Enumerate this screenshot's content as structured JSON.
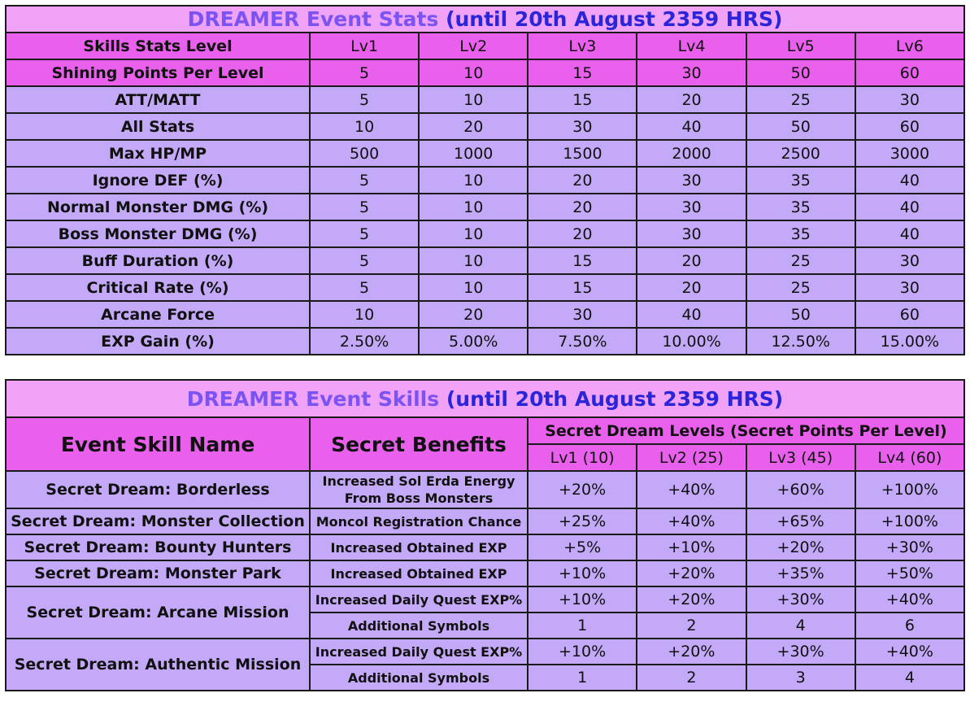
{
  "stats": {
    "title": "DREAMER Event Stats",
    "title_date": "(until 20th August 2359 HRS)",
    "header_label": "Skills Stats Level",
    "levels": [
      "Lv1",
      "Lv2",
      "Lv3",
      "Lv4",
      "Lv5",
      "Lv6"
    ],
    "points_row": {
      "label": "Shining Points Per Level",
      "values": [
        "5",
        "10",
        "15",
        "30",
        "50",
        "60"
      ]
    },
    "rows": [
      {
        "label": "ATT/MATT",
        "values": [
          "5",
          "10",
          "15",
          "20",
          "25",
          "30"
        ]
      },
      {
        "label": "All Stats",
        "values": [
          "10",
          "20",
          "30",
          "40",
          "50",
          "60"
        ]
      },
      {
        "label": "Max HP/MP",
        "values": [
          "500",
          "1000",
          "1500",
          "2000",
          "2500",
          "3000"
        ]
      },
      {
        "label": "Ignore DEF (%)",
        "values": [
          "5",
          "10",
          "20",
          "30",
          "35",
          "40"
        ]
      },
      {
        "label": "Normal Monster DMG (%)",
        "values": [
          "5",
          "10",
          "20",
          "30",
          "35",
          "40"
        ]
      },
      {
        "label": "Boss Monster DMG (%)",
        "values": [
          "5",
          "10",
          "20",
          "30",
          "35",
          "40"
        ]
      },
      {
        "label": "Buff Duration (%)",
        "values": [
          "5",
          "10",
          "15",
          "20",
          "25",
          "30"
        ]
      },
      {
        "label": "Critical Rate (%)",
        "values": [
          "5",
          "10",
          "15",
          "20",
          "25",
          "30"
        ]
      },
      {
        "label": "Arcane Force",
        "values": [
          "10",
          "20",
          "30",
          "40",
          "50",
          "60"
        ]
      },
      {
        "label": "EXP Gain (%)",
        "values": [
          "2.50%",
          "5.00%",
          "7.50%",
          "10.00%",
          "12.50%",
          "15.00%"
        ]
      }
    ]
  },
  "skills": {
    "title": "DREAMER Event Skills",
    "title_date": "(until 20th August 2359 HRS)",
    "col_name": "Event Skill Name",
    "col_benefits": "Secret Benefits",
    "col_levels_group": "Secret Dream Levels (Secret Points Per Level)",
    "levels": [
      "Lv1 (10)",
      "Lv2 (25)",
      "Lv3 (45)",
      "Lv4 (60)"
    ],
    "rows": [
      {
        "name": "Secret Dream: Borderless",
        "benefits": [
          {
            "label": "Increased Sol Erda Energy From Boss Monsters",
            "values": [
              "+20%",
              "+40%",
              "+60%",
              "+100%"
            ]
          }
        ]
      },
      {
        "name": "Secret Dream: Monster Collection",
        "benefits": [
          {
            "label": "Moncol Registration Chance",
            "values": [
              "+25%",
              "+40%",
              "+65%",
              "+100%"
            ]
          }
        ]
      },
      {
        "name": "Secret Dream: Bounty Hunters",
        "benefits": [
          {
            "label": "Increased Obtained EXP",
            "values": [
              "+5%",
              "+10%",
              "+20%",
              "+30%"
            ]
          }
        ]
      },
      {
        "name": "Secret Dream: Monster Park",
        "benefits": [
          {
            "label": "Increased Obtained EXP",
            "values": [
              "+10%",
              "+20%",
              "+35%",
              "+50%"
            ]
          }
        ]
      },
      {
        "name": "Secret Dream: Arcane Mission",
        "benefits": [
          {
            "label": "Increased Daily Quest EXP%",
            "values": [
              "+10%",
              "+20%",
              "+30%",
              "+40%"
            ]
          },
          {
            "label": "Additional Symbols",
            "values": [
              "1",
              "2",
              "4",
              "6"
            ]
          }
        ]
      },
      {
        "name": "Secret Dream: Authentic Mission",
        "benefits": [
          {
            "label": "Increased Daily Quest EXP%",
            "values": [
              "+10%",
              "+20%",
              "+30%",
              "+40%"
            ]
          },
          {
            "label": "Additional Symbols",
            "values": [
              "1",
              "2",
              "3",
              "4"
            ]
          }
        ]
      }
    ]
  }
}
